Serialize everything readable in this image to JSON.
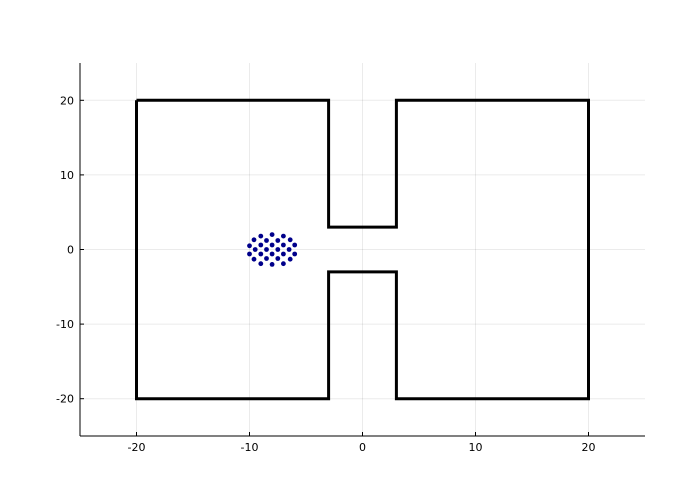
{
  "chart_data": {
    "type": "scatter",
    "title": "",
    "xlabel": "",
    "ylabel": "",
    "xlim": [
      -25,
      25
    ],
    "ylim": [
      -25,
      25
    ],
    "grid": true,
    "legend": "none",
    "x_ticks": [
      -20,
      -10,
      0,
      10,
      20
    ],
    "y_ticks": [
      -20,
      -10,
      0,
      10,
      20
    ],
    "x_tick_labels": [
      "-20",
      "-10",
      "0",
      "10",
      "20"
    ],
    "y_tick_labels": [
      "-20",
      "-10",
      "0",
      "10",
      "20"
    ],
    "wall_color": "#000000",
    "point_color": "#00008b",
    "walls": [
      {
        "name": "outline",
        "points": [
          [
            -20,
            20
          ],
          [
            -3,
            20
          ],
          [
            -3,
            3
          ],
          [
            3,
            3
          ],
          [
            3,
            20
          ],
          [
            20,
            20
          ],
          [
            20,
            -20
          ],
          [
            3,
            -20
          ],
          [
            3,
            -3
          ],
          [
            -3,
            -3
          ],
          [
            -3,
            -20
          ],
          [
            -20,
            -20
          ],
          [
            -20,
            20
          ]
        ]
      }
    ],
    "points": [
      [
        -8.0,
        2.0
      ],
      [
        -9.0,
        1.8
      ],
      [
        -7.0,
        1.8
      ],
      [
        -9.6,
        1.3
      ],
      [
        -8.5,
        1.2
      ],
      [
        -7.5,
        1.2
      ],
      [
        -6.4,
        1.3
      ],
      [
        -10.0,
        0.5
      ],
      [
        -9.0,
        0.6
      ],
      [
        -8.0,
        0.6
      ],
      [
        -7.0,
        0.6
      ],
      [
        -6.0,
        0.6
      ],
      [
        -9.5,
        0.0
      ],
      [
        -8.5,
        0.0
      ],
      [
        -7.5,
        0.0
      ],
      [
        -6.5,
        0.0
      ],
      [
        -10.0,
        -0.6
      ],
      [
        -9.0,
        -0.6
      ],
      [
        -8.0,
        -0.6
      ],
      [
        -7.0,
        -0.6
      ],
      [
        -6.0,
        -0.6
      ],
      [
        -9.6,
        -1.3
      ],
      [
        -8.5,
        -1.2
      ],
      [
        -7.5,
        -1.2
      ],
      [
        -6.4,
        -1.3
      ],
      [
        -9.0,
        -1.9
      ],
      [
        -8.0,
        -2.0
      ],
      [
        -7.0,
        -1.9
      ]
    ]
  }
}
